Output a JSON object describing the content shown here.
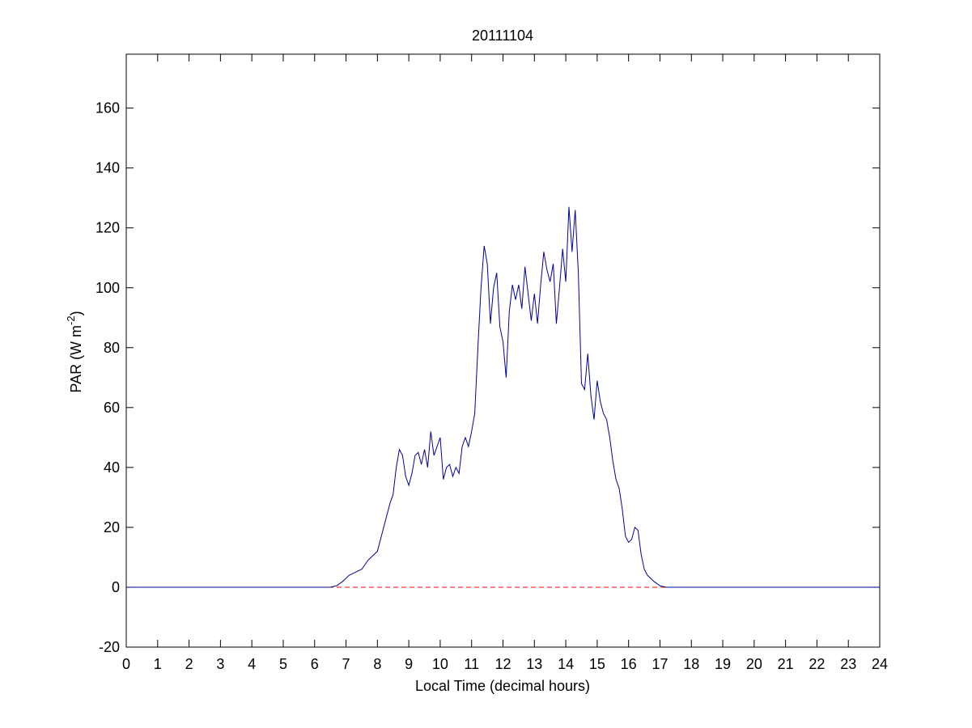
{
  "chart_data": {
    "type": "line",
    "title": "20111104",
    "xlabel": "Local Time (decimal hours)",
    "ylabel": {
      "text": "PAR (W m",
      "superscript": "-2",
      "suffix": ")"
    },
    "xlim": [
      0,
      24
    ],
    "xticks": [
      0,
      1,
      2,
      3,
      4,
      5,
      6,
      7,
      8,
      9,
      10,
      11,
      12,
      13,
      14,
      15,
      16,
      17,
      18,
      19,
      20,
      21,
      22,
      23,
      24
    ],
    "ylim": [
      -20,
      178
    ],
    "yticks": [
      -20,
      0,
      20,
      40,
      60,
      80,
      100,
      120,
      140,
      160
    ],
    "grid": false,
    "reference_line": {
      "y": 0,
      "color": "#ff0000",
      "style": "dashed"
    },
    "series": [
      {
        "name": "PAR",
        "color": "#0000a0",
        "x": [
          0,
          6.5,
          6.7,
          6.9,
          7.1,
          7.3,
          7.5,
          7.7,
          7.9,
          8.0,
          8.2,
          8.4,
          8.5,
          8.6,
          8.7,
          8.8,
          8.9,
          9.0,
          9.1,
          9.2,
          9.3,
          9.4,
          9.5,
          9.6,
          9.7,
          9.8,
          9.9,
          10.0,
          10.1,
          10.2,
          10.3,
          10.4,
          10.5,
          10.6,
          10.7,
          10.8,
          10.9,
          11.0,
          11.1,
          11.2,
          11.3,
          11.4,
          11.5,
          11.6,
          11.7,
          11.8,
          11.9,
          12.0,
          12.1,
          12.2,
          12.3,
          12.4,
          12.5,
          12.6,
          12.7,
          12.8,
          12.9,
          13.0,
          13.1,
          13.2,
          13.3,
          13.4,
          13.5,
          13.6,
          13.7,
          13.8,
          13.9,
          14.0,
          14.1,
          14.2,
          14.3,
          14.4,
          14.5,
          14.6,
          14.7,
          14.8,
          14.9,
          15.0,
          15.1,
          15.2,
          15.3,
          15.4,
          15.5,
          15.6,
          15.7,
          15.8,
          15.9,
          16.0,
          16.1,
          16.2,
          16.3,
          16.4,
          16.5,
          16.6,
          16.8,
          17.0,
          17.2,
          24
        ],
        "values": [
          0,
          0,
          0.5,
          2,
          4,
          5,
          6,
          9,
          11,
          12,
          20,
          28,
          31,
          40,
          46,
          44,
          37,
          34,
          38,
          44,
          45,
          41,
          46,
          40,
          52,
          44,
          47,
          50,
          36,
          40,
          41,
          37,
          40,
          38,
          47,
          50,
          47,
          52,
          58,
          80,
          100,
          114,
          108,
          88,
          100,
          105,
          87,
          82,
          70,
          92,
          101,
          96,
          101,
          93,
          107,
          98,
          89,
          98,
          88,
          101,
          112,
          106,
          102,
          108,
          88,
          100,
          113,
          102,
          127,
          112,
          126,
          105,
          68,
          66,
          78,
          64,
          56,
          69,
          62,
          58,
          56,
          50,
          42,
          36,
          33,
          26,
          17,
          15,
          16,
          20,
          19,
          11,
          6,
          4,
          2,
          0.5,
          0,
          0
        ]
      }
    ]
  }
}
